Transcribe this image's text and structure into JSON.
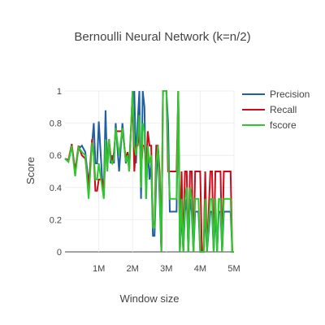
{
  "chart_data": {
    "type": "line",
    "title": "Bernoulli Neural Network (k=n/2)",
    "xlabel": "Window size",
    "ylabel": "Score",
    "xlim": [
      0,
      5000000
    ],
    "ylim": [
      0,
      1
    ],
    "x_ticks": [
      {
        "value": 1000000,
        "label": "1M"
      },
      {
        "value": 2000000,
        "label": "2M"
      },
      {
        "value": 3000000,
        "label": "3M"
      },
      {
        "value": 4000000,
        "label": "4M"
      },
      {
        "value": 5000000,
        "label": "5M"
      }
    ],
    "y_ticks": [
      {
        "value": 0,
        "label": "0"
      },
      {
        "value": 0.2,
        "label": "0.2"
      },
      {
        "value": 0.4,
        "label": "0.4"
      },
      {
        "value": 0.6,
        "label": "0.6"
      },
      {
        "value": 0.8,
        "label": "0.8"
      },
      {
        "value": 1,
        "label": "1"
      }
    ],
    "grid": true,
    "legend_position": "top-right",
    "x": [
      0,
      100000,
      200000,
      300000,
      400000,
      500000,
      600000,
      700000,
      800000,
      850000,
      900000,
      950000,
      1000000,
      1100000,
      1150000,
      1200000,
      1250000,
      1300000,
      1350000,
      1400000,
      1450000,
      1500000,
      1600000,
      1700000,
      1800000,
      1850000,
      1900000,
      1950000,
      2000000,
      2050000,
      2100000,
      2150000,
      2200000,
      2250000,
      2300000,
      2350000,
      2400000,
      2450000,
      2500000,
      2550000,
      2600000,
      2650000,
      2700000,
      2750000,
      2800000,
      2850000,
      2900000,
      2950000,
      3000000,
      3050000,
      3100000,
      3150000,
      3200000,
      3250000,
      3300000,
      3350000,
      3400000,
      3450000,
      3500000,
      3550000,
      3600000,
      3650000,
      3700000,
      3750000,
      3800000,
      3850000,
      3900000,
      3950000,
      4000000,
      4050000,
      4100000,
      4150000,
      4200000,
      4300000,
      4350000,
      4400000,
      4450000,
      4500000,
      4550000,
      4600000,
      4650000,
      4700000,
      4750000,
      4800000,
      4850000,
      4900000,
      4950000,
      5000000
    ],
    "series": [
      {
        "name": "Precision",
        "color": "#1f5fa3",
        "values": [
          0.58,
          0.56,
          0.66,
          0.5,
          0.64,
          0.66,
          0.62,
          0.42,
          0.67,
          0.8,
          0.55,
          0.55,
          0.81,
          0.45,
          0.38,
          0.88,
          0.5,
          0.7,
          0.55,
          0.6,
          0.55,
          0.8,
          0.5,
          0.8,
          0.55,
          0.6,
          0.55,
          0.75,
          0.9,
          1.0,
          0.55,
          0.8,
          1.0,
          0.33,
          1.0,
          0.9,
          0.33,
          0.65,
          0.45,
          0.55,
          0.1,
          0.1,
          0.45,
          0.66,
          0.33,
          0.0,
          1.0,
          1.0,
          1.0,
          0.8,
          0.25,
          0.25,
          0.25,
          0.25,
          0.25,
          1.0,
          0.0,
          0.25,
          0.0,
          0.25,
          0.33,
          0.0,
          0.33,
          0.25,
          0.0,
          0.25,
          0.25,
          0.25,
          0.0,
          0.0,
          0.0,
          0.25,
          0.0,
          0.25,
          0.25,
          0.0,
          0.25,
          0.0,
          0.25,
          0.25,
          0.0,
          0.25,
          0.25,
          0.25,
          0.25,
          0.25,
          0.0,
          0.0
        ]
      },
      {
        "name": "Recall",
        "color": "#cc0a18",
        "values": [
          0.58,
          0.57,
          0.67,
          0.5,
          0.66,
          0.6,
          0.58,
          0.4,
          0.7,
          0.6,
          0.38,
          0.38,
          0.45,
          0.45,
          0.35,
          0.65,
          0.55,
          0.7,
          0.6,
          0.55,
          0.62,
          0.75,
          0.75,
          0.75,
          0.58,
          0.62,
          0.5,
          0.75,
          1.0,
          0.5,
          0.66,
          0.66,
          0.75,
          0.5,
          0.66,
          0.66,
          0.5,
          0.75,
          0.66,
          0.66,
          0.17,
          0.17,
          0.66,
          0.66,
          0.5,
          0.0,
          1.0,
          1.0,
          1.0,
          0.5,
          0.5,
          0.5,
          0.5,
          0.5,
          0.5,
          1.0,
          0.0,
          0.5,
          0.0,
          0.5,
          0.5,
          0.0,
          0.5,
          0.5,
          0.0,
          0.5,
          0.5,
          0.5,
          0.5,
          0.0,
          0.0,
          0.5,
          0.0,
          0.5,
          0.5,
          0.0,
          0.5,
          0.5,
          0.5,
          0.5,
          0.0,
          0.5,
          0.5,
          0.5,
          0.5,
          0.5,
          0.0,
          0.0
        ]
      },
      {
        "name": "fscore",
        "color": "#2ec82e",
        "values": [
          0.58,
          0.56,
          0.66,
          0.47,
          0.65,
          0.62,
          0.6,
          0.33,
          0.68,
          0.6,
          0.45,
          0.45,
          0.55,
          0.4,
          0.33,
          0.7,
          0.5,
          0.7,
          0.57,
          0.55,
          0.58,
          0.77,
          0.6,
          0.77,
          0.56,
          0.6,
          0.5,
          0.75,
          1.0,
          0.66,
          0.6,
          0.7,
          0.85,
          0.4,
          0.8,
          0.75,
          0.33,
          0.66,
          0.55,
          0.6,
          0.15,
          0.15,
          0.55,
          0.66,
          0.4,
          0.0,
          1.0,
          1.0,
          1.0,
          0.6,
          0.33,
          0.33,
          0.33,
          0.33,
          0.33,
          1.0,
          0.0,
          0.33,
          0.0,
          0.33,
          0.4,
          0.0,
          0.4,
          0.33,
          0.0,
          0.33,
          0.33,
          0.33,
          0.0,
          0.0,
          0.0,
          0.33,
          0.0,
          0.33,
          0.33,
          0.0,
          0.33,
          0.0,
          0.33,
          0.33,
          0.0,
          0.33,
          0.33,
          0.33,
          0.33,
          0.33,
          0.0,
          0.0
        ]
      }
    ]
  }
}
